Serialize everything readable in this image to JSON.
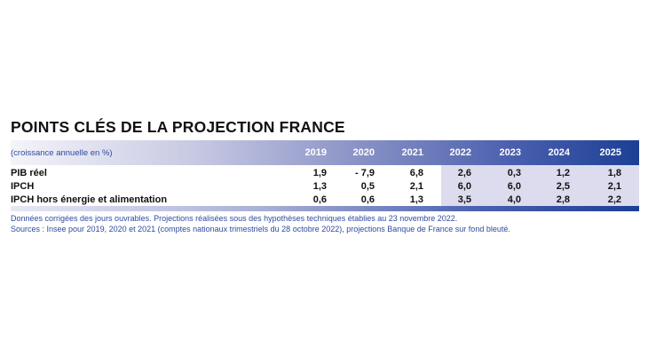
{
  "title": "POINTS CLÉS DE LA PROJECTION FRANCE",
  "chart_data": {
    "type": "table",
    "unit_label": "(croissance annuelle en %)",
    "columns": [
      "2019",
      "2020",
      "2021",
      "2022",
      "2023",
      "2024",
      "2025"
    ],
    "projection_columns": [
      "2022",
      "2023",
      "2024",
      "2025"
    ],
    "rows": [
      {
        "label": "PIB réel",
        "values": [
          "1,9",
          "- 7,9",
          "6,8",
          "2,6",
          "0,3",
          "1,2",
          "1,8"
        ]
      },
      {
        "label": "IPCH",
        "values": [
          "1,3",
          "0,5",
          "2,1",
          "6,0",
          "6,0",
          "2,5",
          "2,1"
        ]
      },
      {
        "label": "IPCH hors énergie et alimentation",
        "values": [
          "0,6",
          "0,6",
          "1,3",
          "3,5",
          "4,0",
          "2,8",
          "2,2"
        ]
      }
    ]
  },
  "notes": [
    "Données corrigées des jours ouvrables. Projections réalisées sous des hypothèses techniques établies au 23 novembre 2022.",
    "Sources : Insee pour 2019, 2020 et 2021 (comptes nationaux trimestriels du 28 octobre 2022), projections Banque de France sur fond bleuté."
  ],
  "colors": {
    "header_dark": "#1c3f95",
    "projection_shade": "#dcdcee",
    "note_text": "#2f4aa0"
  }
}
